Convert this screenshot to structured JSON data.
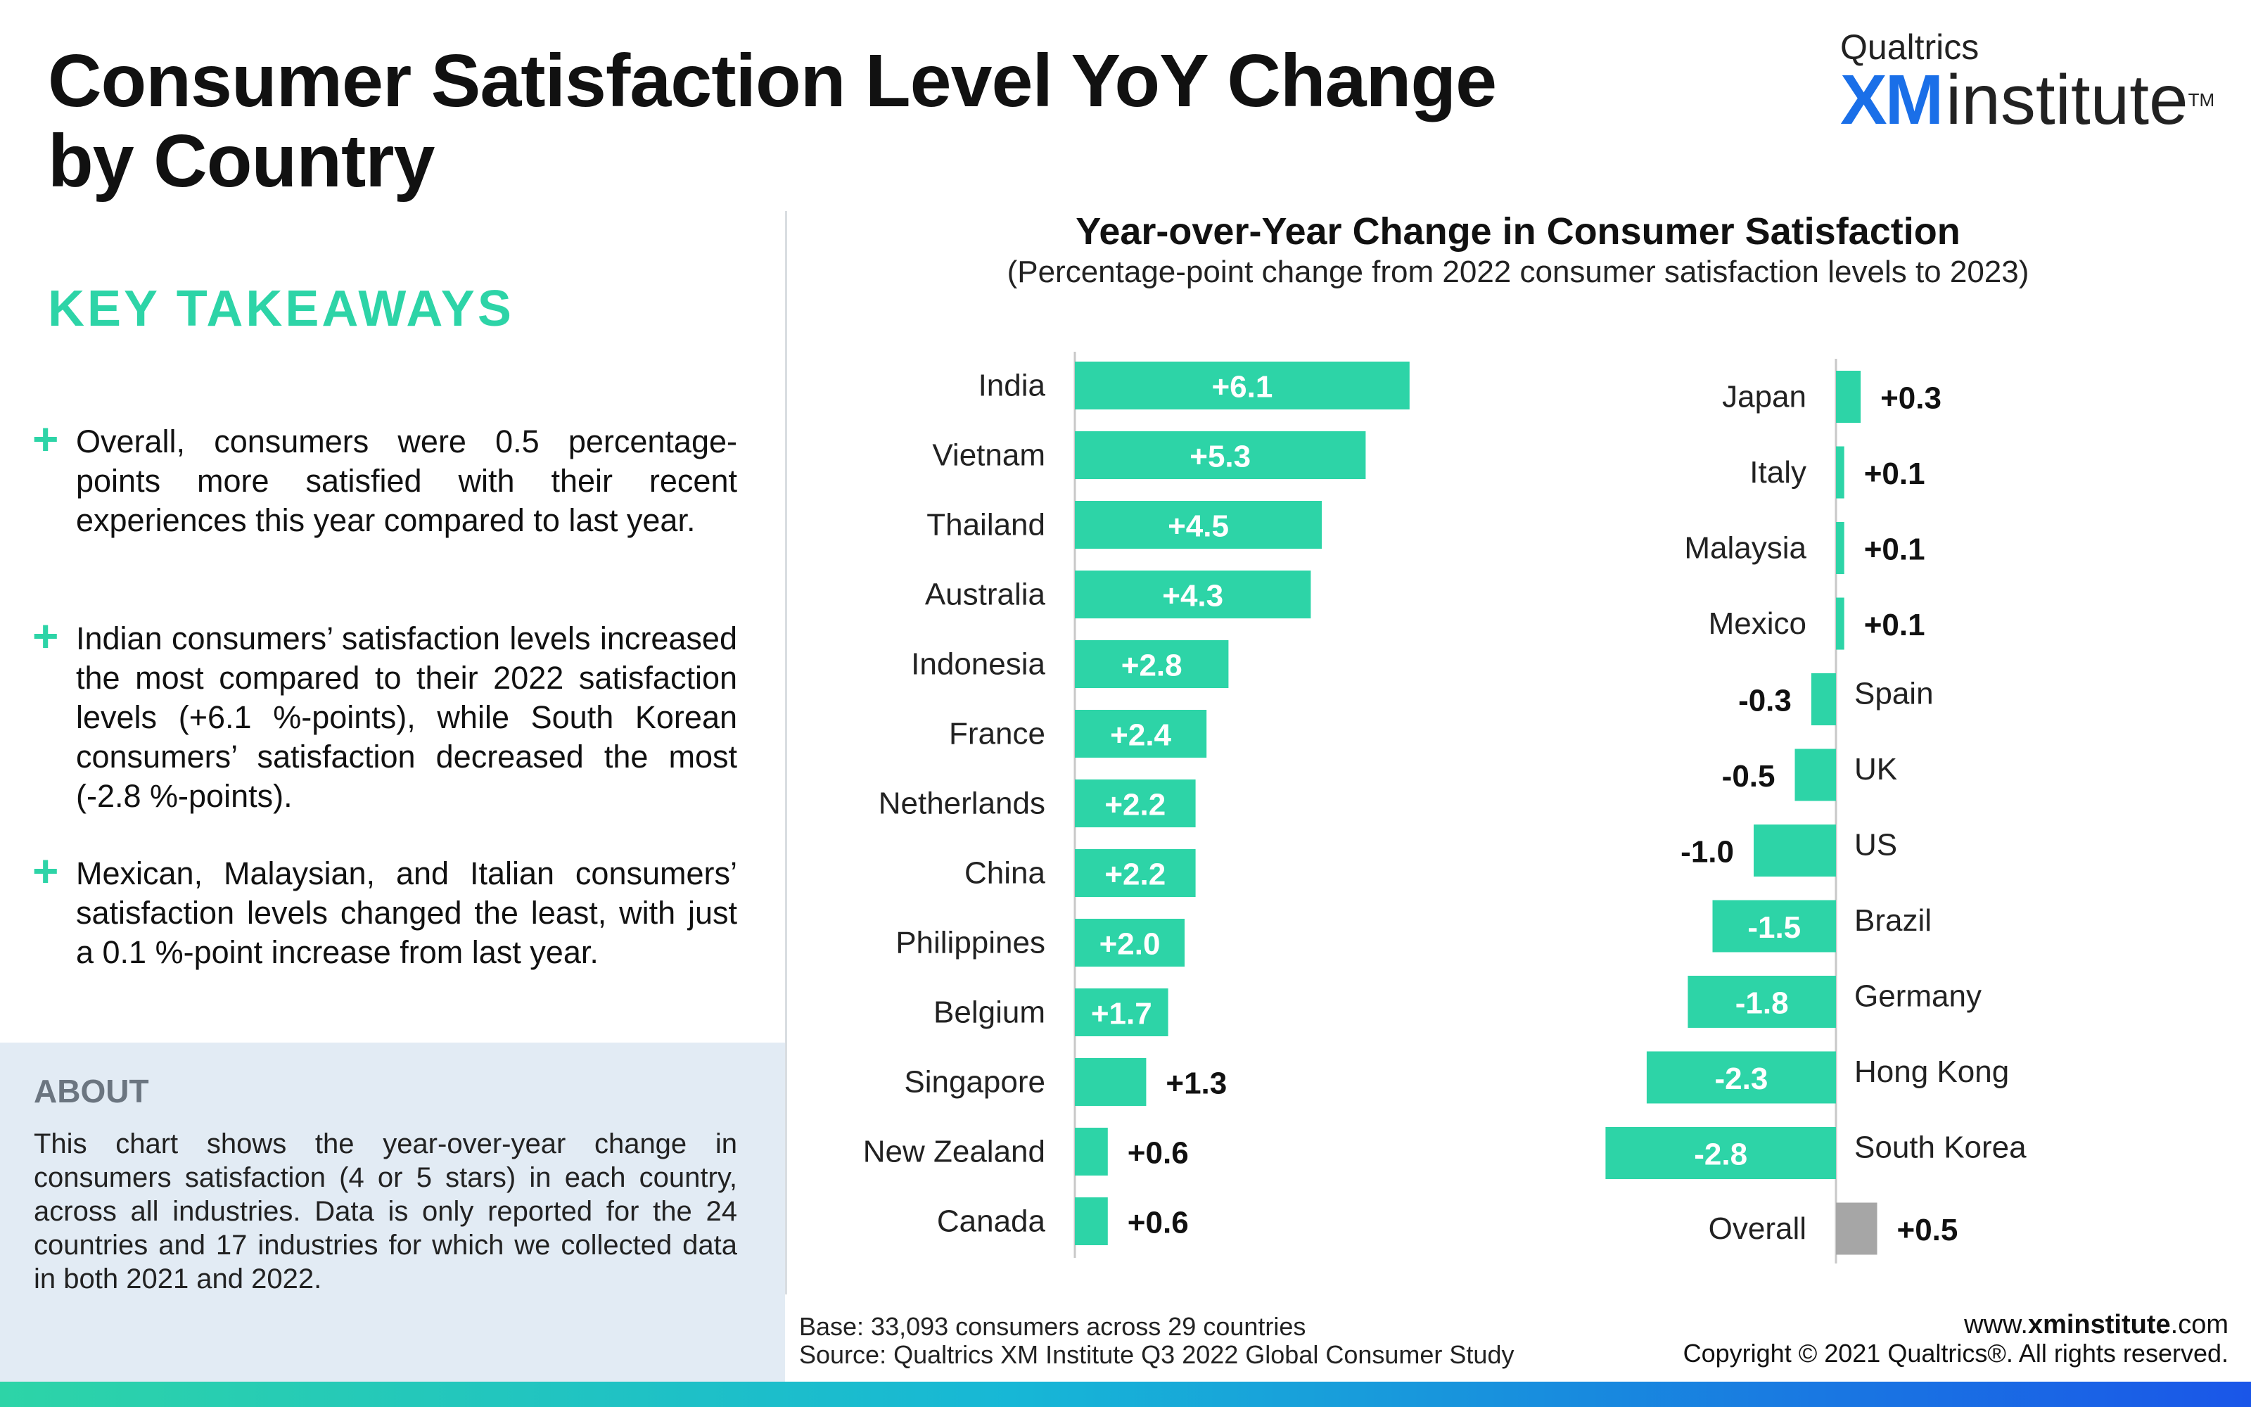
{
  "header": {
    "title_line1": "Consumer Satisfaction Level YoY Change",
    "title_line2": "by Country"
  },
  "logo": {
    "top": "Qualtrics",
    "xm": "XM",
    "institute": "institute",
    "tm": "TM"
  },
  "takeaways": {
    "title": "KEY TAKEAWAYS",
    "items": [
      "Overall, consumers were 0.5 percentage-points more satisfied with their recent experiences this year compared to last year.",
      "Indian consumers’ satisfaction levels increased the most compared to their 2022 satisfaction levels (+6.1 %-points), while South Korean consumers’ satisfaction decreased the most (-2.8 %-points).",
      "Mexican, Malaysian, and Italian consumers’ satisfaction levels changed the least, with just a 0.1 %-point increase from last year."
    ]
  },
  "about": {
    "title": "ABOUT",
    "text": "This chart shows the year-over-year change in consumers satisfaction (4 or 5 stars) in each country, across all industries. Data is only reported for the 24 countries and 17 industries for which we collected data in both 2021 and 2022."
  },
  "chart_data": {
    "type": "bar",
    "orientation": "horizontal",
    "title": "Year-over-Year Change in Consumer Satisfaction",
    "subtitle": "(Percentage-point change from 2022 consumer satisfaction levels to 2023)",
    "colors": {
      "bar": "#2dd4a7",
      "overall": "#a6a6a6",
      "axis": "#c8c8c8"
    },
    "panels": [
      {
        "categories": [
          "India",
          "Vietnam",
          "Thailand",
          "Australia",
          "Indonesia",
          "France",
          "Netherlands",
          "China",
          "Philippines",
          "Belgium",
          "Singapore",
          "New Zealand",
          "Canada"
        ],
        "values": [
          6.1,
          5.3,
          4.5,
          4.3,
          2.8,
          2.4,
          2.2,
          2.2,
          2.0,
          1.7,
          1.3,
          0.6,
          0.6
        ],
        "labels": [
          "+6.1",
          "+5.3",
          "+4.5",
          "+4.3",
          "+2.8",
          "+2.4",
          "+2.2",
          "+2.2",
          "+2.0",
          "+1.7",
          "+1.3",
          "+0.6",
          "+0.6"
        ]
      },
      {
        "categories": [
          "Japan",
          "Italy",
          "Malaysia",
          "Mexico",
          "Spain",
          "UK",
          "US",
          "Brazil",
          "Germany",
          "Hong Kong",
          "South Korea",
          "Overall"
        ],
        "values": [
          0.3,
          0.1,
          0.1,
          0.1,
          -0.3,
          -0.5,
          -1.0,
          -1.5,
          -1.8,
          -2.3,
          -2.8,
          0.5
        ],
        "labels": [
          "+0.3",
          "+0.1",
          "+0.1",
          "+0.1",
          "-0.3",
          "-0.5",
          "-1.0",
          "-1.5",
          "-1.8",
          "-2.3",
          "-2.8",
          "+0.5"
        ]
      }
    ]
  },
  "footer": {
    "base": "Base: 33,093 consumers across 29 countries",
    "source": "Source: Qualtrics XM Institute Q3 2022 Global Consumer Study",
    "site_prefix": "www.",
    "site_bold": "xminstitute",
    "site_suffix": ".com",
    "copyright": "Copyright © 2021 Qualtrics®. All rights reserved."
  }
}
